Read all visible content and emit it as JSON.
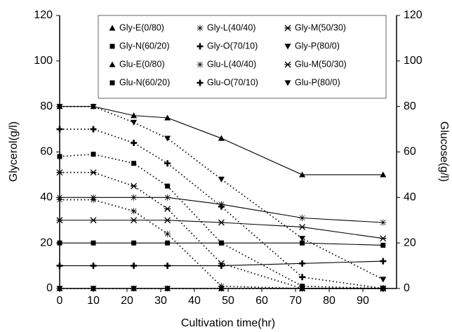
{
  "chart_data": {
    "type": "line",
    "x_label": "Cultivation time(hr)",
    "y_label": "Glycerol(g/l)",
    "y2_label": "Glucose(g/l)",
    "x": [
      0,
      10,
      22,
      32,
      48,
      72,
      96
    ],
    "xlim": [
      0,
      100
    ],
    "xticks": [
      0,
      10,
      20,
      30,
      40,
      50,
      60,
      70,
      80,
      90
    ],
    "ylim": [
      0,
      120
    ],
    "yticks": [
      0,
      20,
      40,
      60,
      80,
      100,
      120
    ],
    "y2lim": [
      0,
      120
    ],
    "y2ticks": [
      0,
      20,
      40,
      60,
      80,
      100,
      120
    ],
    "legend": "upper center",
    "series": [
      {
        "name": "Gly-E(0/80)",
        "color": "#000000",
        "marker": "triangle",
        "dash": "dotted",
        "values": [
          0,
          0,
          0,
          0,
          0,
          0,
          0
        ]
      },
      {
        "name": "Gly-L(40/40)",
        "color": "#000000",
        "marker": "star",
        "dash": "dotted",
        "values": [
          39,
          39,
          34,
          24,
          1,
          0,
          0
        ]
      },
      {
        "name": "Gly-M(50/30)",
        "color": "#000000",
        "marker": "asterisk",
        "dash": "dotted",
        "values": [
          51,
          51,
          45,
          35,
          11,
          0,
          0
        ]
      },
      {
        "name": "Gly-N(60/20)",
        "color": "#000000",
        "marker": "square",
        "dash": "dotted",
        "values": [
          58,
          59,
          55,
          45,
          20,
          1,
          0
        ]
      },
      {
        "name": "Gly-O(70/10)",
        "color": "#000000",
        "marker": "plus",
        "dash": "dotted",
        "values": [
          70,
          70,
          64,
          55,
          36,
          5,
          0
        ]
      },
      {
        "name": "Gly-P(80/0)",
        "color": "#000000",
        "marker": "triangle-down",
        "dash": "dotted",
        "values": [
          80,
          80,
          73,
          66,
          48,
          22,
          4
        ]
      },
      {
        "name": "Glu-E(0/80)",
        "color": "#000000",
        "marker": "triangle",
        "dash": "solid",
        "axis": "y2",
        "values": [
          80,
          80,
          76,
          75,
          66,
          50,
          50
        ]
      },
      {
        "name": "Glu-L(40/40)",
        "color": "#000000",
        "marker": "star",
        "dash": "solid",
        "axis": "y2",
        "values": [
          40,
          40,
          40,
          40,
          37,
          31,
          29
        ]
      },
      {
        "name": "Glu-M(50/30)",
        "color": "#000000",
        "marker": "asterisk",
        "dash": "solid",
        "axis": "y2",
        "values": [
          30,
          30,
          30,
          30,
          29,
          27,
          22
        ]
      },
      {
        "name": "Glu-N(60/20)",
        "color": "#000000",
        "marker": "square",
        "dash": "solid",
        "axis": "y2",
        "values": [
          20,
          20,
          20,
          20,
          20,
          20,
          19
        ]
      },
      {
        "name": "Glu-O(70/10)",
        "color": "#000000",
        "marker": "plus",
        "dash": "solid",
        "axis": "y2",
        "values": [
          10,
          10,
          10,
          10,
          10,
          11,
          12
        ]
      },
      {
        "name": "Glu-P(80/0)",
        "color": "#000000",
        "marker": "triangle-down",
        "dash": "solid",
        "axis": "y2",
        "values": [
          0,
          0,
          0,
          0,
          0,
          0,
          0
        ]
      }
    ]
  }
}
